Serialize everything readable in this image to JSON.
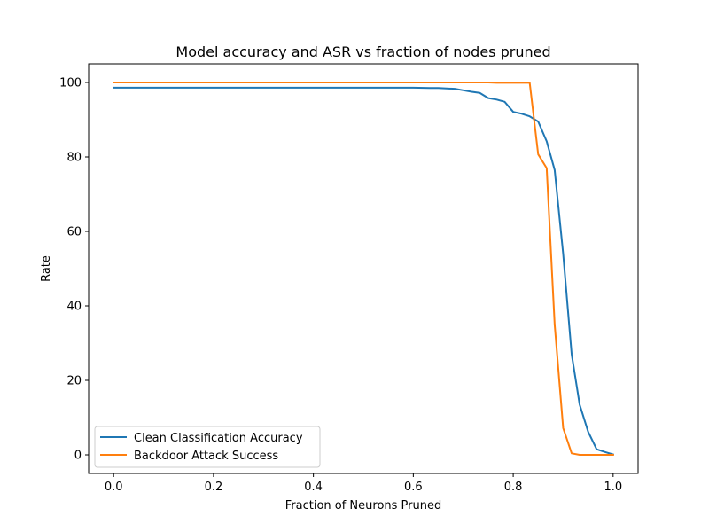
{
  "chart_data": {
    "type": "line",
    "title": "Model accuracy and ASR vs fraction of nodes pruned",
    "xlabel": "Fraction of Neurons Pruned",
    "ylabel": "Rate",
    "xlim": [
      -0.05,
      1.05
    ],
    "ylim": [
      -5,
      105
    ],
    "xticks": [
      "0.0",
      "0.2",
      "0.4",
      "0.6",
      "0.8",
      "1.0"
    ],
    "yticks": [
      "0",
      "20",
      "40",
      "60",
      "80",
      "100"
    ],
    "grid": false,
    "legend_position": "lower-left",
    "series": [
      {
        "name": "Clean Classification Accuracy",
        "color": "#1f77b4",
        "x": [
          0.0,
          0.1,
          0.2,
          0.3,
          0.4,
          0.5,
          0.6,
          0.633,
          0.65,
          0.667,
          0.683,
          0.7,
          0.717,
          0.733,
          0.75,
          0.767,
          0.783,
          0.8,
          0.817,
          0.833,
          0.85,
          0.867,
          0.883,
          0.9,
          0.917,
          0.933,
          0.95,
          0.967,
          0.983,
          1.0
        ],
        "y": [
          98.6,
          98.6,
          98.6,
          98.6,
          98.6,
          98.6,
          98.6,
          98.5,
          98.5,
          98.4,
          98.3,
          97.9,
          97.5,
          97.2,
          95.8,
          95.4,
          94.8,
          92.1,
          91.6,
          90.9,
          89.5,
          84.2,
          76.5,
          54.0,
          27.0,
          13.5,
          6.2,
          1.5,
          0.8,
          0.1
        ]
      },
      {
        "name": "Backdoor Attack Success",
        "color": "#ff7f0e",
        "x": [
          0.0,
          0.2,
          0.4,
          0.6,
          0.75,
          0.767,
          0.8,
          0.833,
          0.85,
          0.867,
          0.883,
          0.9,
          0.917,
          0.933,
          0.95,
          1.0
        ],
        "y": [
          100.0,
          100.0,
          100.0,
          100.0,
          100.0,
          99.9,
          99.9,
          99.9,
          80.7,
          77.0,
          35.0,
          7.2,
          0.4,
          0.0,
          0.0,
          0.0
        ]
      }
    ]
  }
}
